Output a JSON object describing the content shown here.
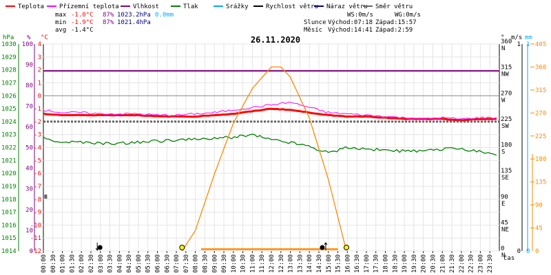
{
  "legend": [
    {
      "label": "Teplota",
      "color": "#ff0000"
    },
    {
      "label": "Přízemní teplota",
      "color": "#ff00ff"
    },
    {
      "label": "Vlhkost",
      "color": "#800080"
    },
    {
      "label": "Tlak",
      "color": "#008000"
    },
    {
      "label": "Srážky",
      "color": "#00aaff"
    },
    {
      "label": "Rychlost větru",
      "color": "#000000"
    },
    {
      "label": "Náraz větru",
      "color": "#000080"
    },
    {
      "label": "Směr větru",
      "color": "#666666"
    }
  ],
  "stats": {
    "max": {
      "label": "max",
      "temp": "-1.0°C",
      "hum": "87%",
      "press": "1023.2hPa",
      "rain": "0.0mm"
    },
    "min": {
      "label": "min",
      "temp": "-1.9°C",
      "hum": "87%",
      "press": "1021.4hPa"
    },
    "avg": {
      "label": "avg",
      "temp": "-1.4°C"
    }
  },
  "wind_info": {
    "ws": "WS:0m/s",
    "wg": "WG:0m/s"
  },
  "sun_info": {
    "label": "Slunce",
    "rise": "Východ:07:18",
    "set": "Západ:15:57"
  },
  "moon_info": {
    "label": "Měsíc",
    "rise": "Východ:14:41",
    "set": "Západ:2:59"
  },
  "colors": {
    "temp": "#ff0000",
    "ground": "#ff00ff",
    "hum": "#800080",
    "press": "#008000",
    "rain": "#00aaff",
    "wind": "#000000",
    "gust": "#000080",
    "dir": "#666666",
    "sun": "#ff8800"
  },
  "chart_data": {
    "type": "line",
    "title": "26.11.2020",
    "x_unit": "čas",
    "x_ticks": [
      "00:00",
      "00:30",
      "01:00",
      "01:30",
      "02:00",
      "02:30",
      "03:00",
      "03:30",
      "04:00",
      "04:30",
      "05:00",
      "05:30",
      "06:00",
      "06:30",
      "07:00",
      "07:30",
      "08:00",
      "08:30",
      "09:00",
      "09:30",
      "10:00",
      "10:30",
      "11:00",
      "11:30",
      "12:00",
      "12:30",
      "13:00",
      "13:30",
      "14:00",
      "14:30",
      "15:00",
      "15:30",
      "16:00",
      "16:30",
      "17:00",
      "17:30",
      "18:00",
      "18:30",
      "19:00",
      "19:30",
      "20:00",
      "20:30",
      "21:00",
      "21:30",
      "22:00",
      "22:30",
      "23:00",
      "23:30"
    ],
    "axes": {
      "pressure": {
        "unit": "hPa",
        "range": [
          1014,
          1030
        ],
        "ticks": [
          1014,
          1015,
          1016,
          1017,
          1018,
          1019,
          1020,
          1021,
          1022,
          1023,
          1024,
          1025,
          1026,
          1027,
          1028,
          1029,
          1030
        ]
      },
      "humidity": {
        "unit": "%",
        "range": [
          0,
          100
        ],
        "ticks": [
          0,
          10,
          20,
          30,
          40,
          50,
          60,
          70,
          80,
          90,
          100
        ]
      },
      "temperature": {
        "unit": "°C",
        "range": [
          -12,
          4
        ],
        "ticks": [
          -12,
          -11,
          -10,
          -9,
          -8,
          -7,
          -6,
          -5,
          -4,
          -3,
          -2,
          -1,
          0,
          1,
          2,
          3,
          4
        ]
      },
      "direction": {
        "unit": "°",
        "range": [
          0,
          360
        ],
        "ticks": [
          0,
          45,
          90,
          135,
          180,
          225,
          270,
          315,
          360
        ],
        "labels": [
          "N",
          "NE",
          "E",
          "SE",
          "S",
          "SW",
          "W",
          "NW",
          "N"
        ]
      },
      "wind": {
        "unit": "m/s",
        "range": [
          0,
          1
        ],
        "ticks": [
          0,
          1
        ]
      },
      "rain": {
        "unit": "mm",
        "range": [
          0,
          1
        ],
        "ticks": [
          0,
          1
        ]
      },
      "sun": {
        "range": [
          0,
          405
        ],
        "ticks": [
          0,
          45,
          90,
          135,
          180,
          225,
          270,
          315,
          360,
          405
        ]
      }
    },
    "series": [
      {
        "name": "Teplota",
        "axis": "temperature",
        "x_hours": [
          0,
          1,
          2,
          3,
          4,
          5,
          6,
          7,
          8,
          9,
          10,
          11,
          12,
          13,
          14,
          15,
          16,
          17,
          18,
          19,
          20,
          21,
          22,
          23,
          23.98
        ],
        "values": [
          -1.4,
          -1.5,
          -1.5,
          -1.5,
          -1.5,
          -1.5,
          -1.6,
          -1.6,
          -1.6,
          -1.5,
          -1.4,
          -1.2,
          -1.0,
          -1.1,
          -1.3,
          -1.5,
          -1.6,
          -1.6,
          -1.7,
          -1.8,
          -1.8,
          -1.8,
          -1.9,
          -1.8,
          -1.8
        ]
      },
      {
        "name": "Přízemní teplota",
        "axis": "temperature",
        "x_hours": [
          0,
          1,
          2,
          3,
          4,
          5,
          6,
          7,
          8,
          9,
          10,
          11,
          12,
          13,
          14,
          15,
          16,
          17,
          18,
          19,
          20,
          21,
          22,
          23,
          23.98
        ],
        "values": [
          -1.1,
          -1.3,
          -1.3,
          -1.4,
          -1.4,
          -1.4,
          -1.5,
          -1.5,
          -1.4,
          -1.3,
          -1.1,
          -0.9,
          -0.7,
          -0.5,
          -0.9,
          -1.3,
          -1.4,
          -1.5,
          -1.6,
          -1.7,
          -1.8,
          -1.7,
          -1.8,
          -1.7,
          -1.7
        ]
      },
      {
        "name": "Vlhkost",
        "axis": "humidity",
        "x_hours": [
          0,
          23.98
        ],
        "values": [
          87,
          87
        ]
      },
      {
        "name": "Tlak",
        "axis": "pressure",
        "x_hours": [
          0,
          1,
          2,
          3,
          4,
          5,
          6,
          7,
          8,
          9,
          10,
          11,
          12,
          13,
          14,
          15,
          16,
          17,
          18,
          19,
          20,
          21,
          22,
          23,
          23.98
        ],
        "values": [
          1022.7,
          1022.4,
          1022.4,
          1022.3,
          1022.3,
          1022.4,
          1022.5,
          1022.6,
          1022.6,
          1022.7,
          1022.8,
          1023.0,
          1022.6,
          1022.4,
          1022.1,
          1021.6,
          1022.0,
          1021.9,
          1021.8,
          1021.7,
          1021.7,
          1021.9,
          1021.9,
          1021.7,
          1021.4
        ]
      },
      {
        "name": "Směr větru",
        "axis": "direction",
        "x_hours": [
          0,
          23.98
        ],
        "values": [
          225,
          225
        ]
      },
      {
        "name": "Slunce",
        "axis": "sun",
        "x_hours": [
          7.3,
          8,
          9,
          10,
          11,
          12,
          12.5,
          13,
          14,
          15,
          15.95
        ],
        "values": [
          0,
          40,
          150,
          250,
          318,
          360,
          360,
          340,
          260,
          140,
          0
        ]
      }
    ],
    "markers": [
      {
        "type": "sun",
        "label": "Východ",
        "x_hours": 7.3
      },
      {
        "type": "sun",
        "label": "Západ",
        "x_hours": 15.95
      },
      {
        "type": "moon",
        "label": "Západ",
        "x_hours": 2.98
      },
      {
        "type": "moon",
        "label": "Východ",
        "x_hours": 14.68
      }
    ]
  }
}
